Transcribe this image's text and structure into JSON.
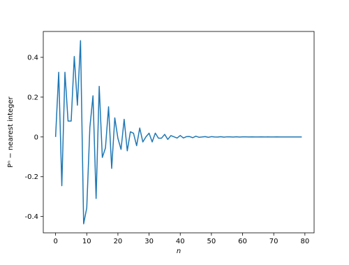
{
  "chart_data": {
    "type": "line",
    "x_label": "n",
    "y_label": "Pⁿ − nearest integer",
    "x": [
      0,
      1,
      2,
      3,
      4,
      5,
      6,
      7,
      8,
      9,
      10,
      11,
      12,
      13,
      14,
      15,
      16,
      17,
      18,
      19,
      20,
      21,
      22,
      23,
      24,
      25,
      26,
      27,
      28,
      29,
      30,
      31,
      32,
      33,
      34,
      35,
      36,
      37,
      38,
      39,
      40,
      41,
      42,
      43,
      44,
      45,
      46,
      47,
      48,
      49,
      50,
      51,
      52,
      53,
      54,
      55,
      56,
      57,
      58,
      59,
      60,
      61,
      62,
      63,
      64,
      65,
      66,
      67,
      68,
      69,
      70,
      71,
      72,
      73,
      74,
      75,
      76,
      77,
      78,
      79
    ],
    "series": [
      {
        "name": "Pⁿ − nearest integer",
        "color": "#1f77b4",
        "values": [
          0,
          0.3247,
          -0.2451,
          0.3247,
          0.0796,
          0.0796,
          0.4043,
          0.1592,
          0.4839,
          -0.4365,
          -0.3569,
          0.0474,
          0.2066,
          -0.3095,
          0.254,
          -0.1029,
          -0.0555,
          0.1512,
          -0.1583,
          0.0957,
          -0.0072,
          -0.0626,
          0.0885,
          -0.0698,
          0.0259,
          0.0187,
          -0.044,
          0.0446,
          -0.0253,
          0.0006,
          0.0188,
          -0.0252,
          0.0191,
          -0.0063,
          -0.0061,
          0.0128,
          -0.0124,
          0.0067,
          0.0004,
          -0.0056,
          0.0072,
          -0.0052,
          0.0015,
          0.0019,
          -0.0037,
          0.0035,
          -0.0018,
          -0.0003,
          0.0017,
          -0.002,
          0.0014,
          -0.0003,
          -0.0006,
          0.0011,
          -0.001,
          0.0005,
          0.0001,
          -0.0005,
          0.0006,
          -0.0004,
          0.0001,
          0.0002,
          -0.0003,
          0.0003,
          -0.0001,
          0,
          0.0001,
          -0.0002,
          0.0001,
          0,
          -0.0001,
          0.0001,
          -0.0001,
          0,
          0,
          0,
          0,
          0,
          0,
          0
        ]
      }
    ],
    "xlim": [
      -3.95,
      82.95
    ],
    "ylim": [
      -0.482,
      0.53
    ],
    "xticks": [
      0,
      10,
      20,
      30,
      40,
      50,
      60,
      70,
      80
    ],
    "yticks": [
      -0.4,
      -0.2,
      0.0,
      0.2,
      0.4
    ]
  }
}
